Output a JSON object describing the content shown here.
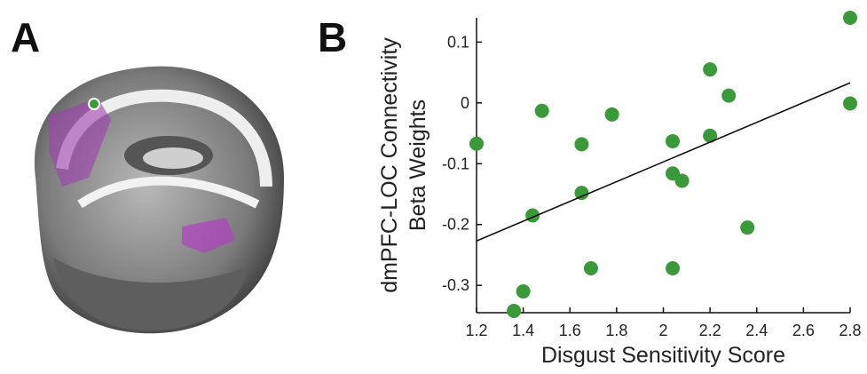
{
  "figure": {
    "panel_labels": [
      "A",
      "B"
    ]
  },
  "chart_data": {
    "type": "scatter",
    "x_label": "Disgust Sensitivity Score",
    "y_label": [
      "dmPFC-LOC Connectivity",
      "Beta Weights"
    ],
    "color": "#3a9a3a",
    "x": [
      1.2,
      1.48,
      1.44,
      1.4,
      1.36,
      1.69,
      1.65,
      1.65,
      1.78,
      2.04,
      2.04,
      2.08,
      2.04,
      2.2,
      2.2,
      2.28,
      2.36,
      2.8,
      2.8
    ],
    "values": [
      -0.067,
      -0.013,
      -0.185,
      -0.31,
      -0.342,
      -0.272,
      -0.068,
      -0.148,
      -0.019,
      -0.063,
      -0.116,
      -0.128,
      -0.272,
      0.055,
      -0.054,
      0.012,
      -0.205,
      0.14,
      -0.001
    ],
    "fit": {
      "x": [
        1.2,
        2.8
      ],
      "y": [
        -0.227,
        0.033
      ]
    },
    "xlim": [
      1.2,
      2.8
    ],
    "ylim": [
      -0.345,
      0.14
    ],
    "xticks": [
      1.2,
      1.4,
      1.6,
      1.8,
      2,
      2.2,
      2.4,
      2.6,
      2.8
    ],
    "yticks": [
      0.1,
      0,
      -0.1,
      -0.2,
      -0.3
    ]
  }
}
